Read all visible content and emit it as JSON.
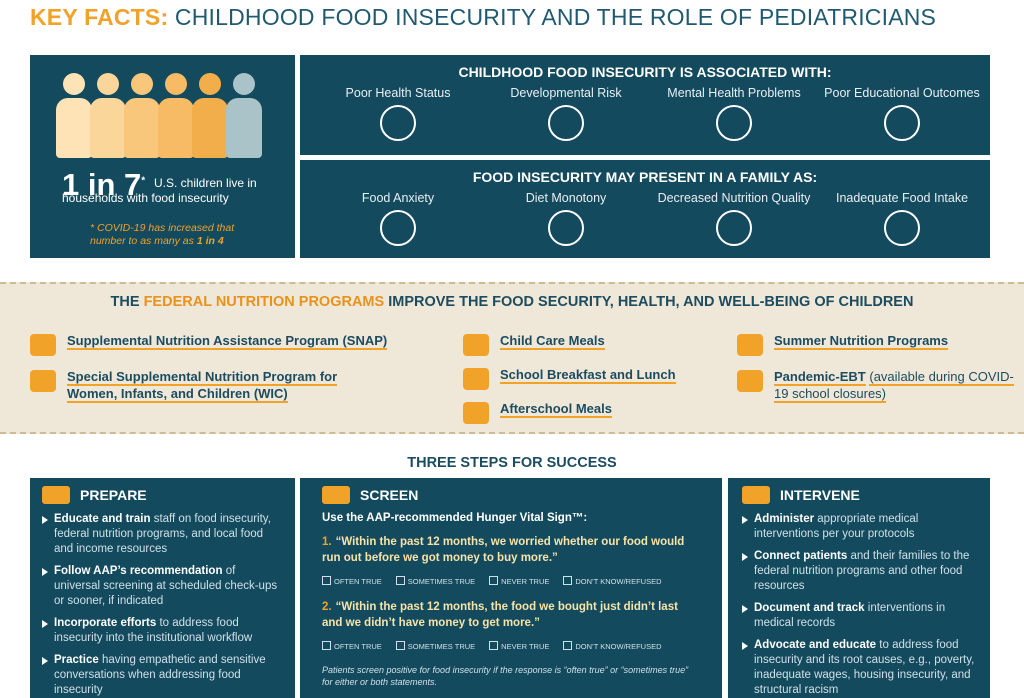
{
  "header": {
    "key": "KEY FACTS:",
    "title": "CHILDHOOD FOOD INSECURITY AND THE ROLE OF PEDIATRICIANS"
  },
  "stat": {
    "big": "1 in 7",
    "star": "*",
    "text": "U.S. children live in households with food insecurity",
    "note": "* COVID-19 has increased that number to as many as",
    "note_strong": "1 in 4"
  },
  "associated": {
    "heading": "CHILDHOOD FOOD INSECURITY IS ASSOCIATED WITH:",
    "items": [
      "Poor Health Status",
      "Developmental Risk",
      "Mental Health Problems",
      "Poor Educational Outcomes"
    ]
  },
  "presents": {
    "heading": "FOOD INSECURITY MAY PRESENT IN A FAMILY AS:",
    "items": [
      "Food Anxiety",
      "Diet Monotony",
      "Decreased Nutrition Quality",
      "Inadequate Food Intake"
    ]
  },
  "programs": {
    "heading_pre": "THE",
    "heading_strong": "FEDERAL NUTRITION PROGRAMS",
    "heading_post": "IMPROVE THE FOOD SECURITY, HEALTH, AND WELL-BEING OF CHILDREN",
    "items": [
      {
        "label": "Supplemental Nutrition Assistance Program (SNAP)"
      },
      {
        "label": "Special Supplemental Nutrition Program for Women, Infants, and Children (WIC)"
      },
      {
        "label": "Child Care Meals"
      },
      {
        "label": "School Breakfast and Lunch"
      },
      {
        "label": "Afterschool Meals"
      },
      {
        "label": "Summer Nutrition Programs"
      },
      {
        "label": "Pandemic-EBT",
        "note": "(available during COVID-19 school closures)"
      }
    ]
  },
  "steps": {
    "heading": "THREE STEPS FOR SUCCESS",
    "prepare": {
      "title": "PREPARE",
      "bullets": [
        {
          "bold": "Educate and train",
          "text": "staff on food insecurity, federal nutrition programs, and local food and income resources"
        },
        {
          "bold": "Follow AAP’s recommendation",
          "text": "of universal screening at scheduled check-ups or sooner, if indicated"
        },
        {
          "bold": "Incorporate efforts",
          "text": "to address food insecurity into the institutional workflow"
        },
        {
          "bold": "Practice",
          "text": "having empathetic and sensitive conversations when addressing food insecurity"
        }
      ]
    },
    "screen": {
      "title": "SCREEN",
      "intro": "Use the AAP-recommended Hunger Vital Sign™:",
      "questions": [
        {
          "number": "1.",
          "text": "“Within the past 12 months, we worried whether our food would run out before we got money to buy more.”",
          "options": [
            "OFTEN TRUE",
            "SOMETIMES TRUE",
            "NEVER TRUE",
            "DON’T KNOW/REFUSED"
          ]
        },
        {
          "number": "2.",
          "text": "“Within the past 12 months, the food we bought just didn’t last and we didn’t have money to get more.”",
          "options": [
            "OFTEN TRUE",
            "SOMETIMES TRUE",
            "NEVER TRUE",
            "DON’T KNOW/REFUSED"
          ]
        }
      ],
      "footnote": "Patients screen positive for food insecurity if the response is “often true” or “sometimes true” for either or both statements."
    },
    "intervene": {
      "title": "INTERVENE",
      "bullets": [
        {
          "bold": "Administer",
          "text": "appropriate medical interventions per your protocols"
        },
        {
          "bold": "Connect patients",
          "text": "and their families to the federal nutrition programs and other food resources"
        },
        {
          "bold": "Document and track",
          "text": "interventions in medical records"
        },
        {
          "bold": "Advocate and educate",
          "text": "to address food insecurity and its root causes, e.g., poverty, inadequate wages, housing insecurity, and structural racism"
        }
      ]
    }
  }
}
